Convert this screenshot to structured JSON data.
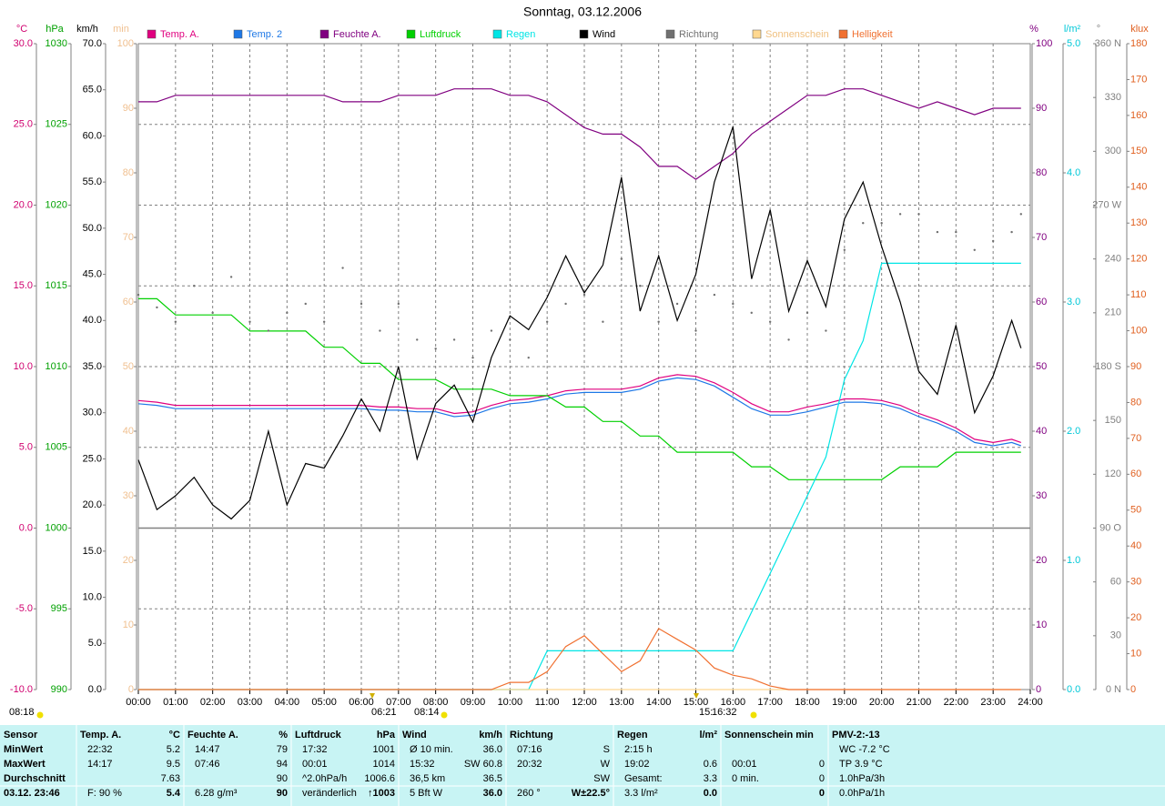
{
  "chart_data": {
    "type": "line",
    "title": "Sonntag, 03.12.2006",
    "grid": true,
    "axes": [
      {
        "label": "°C",
        "color": "#d0006f",
        "lim": [
          -10,
          30
        ],
        "ticks": [
          {
            "value": -10,
            "label": "-10.0"
          },
          {
            "value": -5,
            "label": "-5.0"
          },
          {
            "value": 0,
            "label": "0.0"
          },
          {
            "value": 5,
            "label": "5.0"
          },
          {
            "value": 10,
            "label": "10.0"
          },
          {
            "value": 15,
            "label": "15.0"
          },
          {
            "value": 20,
            "label": "20.0"
          },
          {
            "value": 25,
            "label": "25.0"
          },
          {
            "value": 30,
            "label": "30.0"
          }
        ]
      },
      {
        "label": "hPa",
        "color": "#00a000",
        "lim": [
          990,
          1030
        ],
        "ticks": [
          990,
          995,
          1000,
          1005,
          1010,
          1015,
          1020,
          1025,
          1030
        ]
      },
      {
        "label": "km/h",
        "color": "#000000",
        "lim": [
          0,
          70
        ],
        "ticks": [
          {
            "value": 0,
            "label": "0.0"
          },
          {
            "value": 5,
            "label": "5.0"
          },
          {
            "value": 10,
            "label": "10.0"
          },
          {
            "value": 15,
            "label": "15.0"
          },
          {
            "value": 20,
            "label": "20.0"
          },
          {
            "value": 25,
            "label": "25.0"
          },
          {
            "value": 30,
            "label": "30.0"
          },
          {
            "value": 35,
            "label": "35.0"
          },
          {
            "value": 40,
            "label": "40.0"
          },
          {
            "value": 45,
            "label": "45.0"
          },
          {
            "value": 50,
            "label": "50.0"
          },
          {
            "value": 55,
            "label": "55.0"
          },
          {
            "value": 60,
            "label": "60.0"
          },
          {
            "value": 65,
            "label": "65.0"
          },
          {
            "value": 70,
            "label": "70.0"
          }
        ]
      },
      {
        "label": "min",
        "color": "#f0c090",
        "lim": [
          0,
          100
        ],
        "ticks": [
          0,
          10,
          20,
          30,
          40,
          50,
          60,
          70,
          80,
          90,
          100
        ]
      },
      {
        "label": "%",
        "color": "#800080",
        "lim": [
          0,
          100
        ],
        "ticks": [
          0,
          10,
          20,
          30,
          40,
          50,
          60,
          70,
          80,
          90,
          100
        ]
      },
      {
        "label": "l/m²",
        "color": "#00c8d8",
        "lim": [
          0,
          5
        ],
        "ticks": [
          {
            "value": 0,
            "label": "0.0"
          },
          {
            "value": 1,
            "label": "1.0"
          },
          {
            "value": 2,
            "label": "2.0"
          },
          {
            "value": 3,
            "label": "3.0"
          },
          {
            "value": 4,
            "label": "4.0"
          },
          {
            "value": 5,
            "label": "5.0"
          }
        ]
      },
      {
        "label": "°",
        "color": "#808080",
        "lim": [
          0,
          360
        ],
        "ticks": [
          {
            "value": 0,
            "label": "0 N"
          },
          30,
          60,
          {
            "value": 90,
            "label": "90 O"
          },
          120,
          150,
          {
            "value": 180,
            "label": "180 S"
          },
          210,
          240,
          {
            "value": 270,
            "label": "270 W"
          },
          300,
          330,
          {
            "value": 360,
            "label": "360 N"
          }
        ]
      },
      {
        "label": "klux",
        "color": "#e06020",
        "lim": [
          0,
          180
        ],
        "ticks": [
          0,
          10,
          20,
          30,
          40,
          50,
          60,
          70,
          80,
          90,
          100,
          110,
          120,
          130,
          140,
          150,
          160,
          170,
          180
        ]
      }
    ],
    "x": [
      0,
      0.5,
      1,
      1.5,
      2,
      2.5,
      3,
      3.5,
      4,
      4.5,
      5,
      5.5,
      6,
      6.5,
      7,
      7.5,
      8,
      8.5,
      9,
      9.5,
      10,
      10.5,
      11,
      11.5,
      12,
      12.5,
      13,
      13.5,
      14,
      14.5,
      15,
      15.5,
      16,
      16.5,
      17,
      17.5,
      18,
      18.5,
      19,
      19.5,
      20,
      20.5,
      21,
      21.5,
      22,
      22.5,
      23,
      23.5,
      23.75
    ],
    "xlim": [
      0,
      24
    ],
    "xticks": [
      {
        "value": 0,
        "label": "00:00"
      },
      {
        "value": 1,
        "label": "01:00"
      },
      {
        "value": 2,
        "label": "02:00"
      },
      {
        "value": 3,
        "label": "03:00"
      },
      {
        "value": 4,
        "label": "04:00"
      },
      {
        "value": 5,
        "label": "05:00"
      },
      {
        "value": 6,
        "label": "06:00"
      },
      {
        "value": 7,
        "label": "07:00"
      },
      {
        "value": 8,
        "label": "08:00"
      },
      {
        "value": 9,
        "label": "09:00"
      },
      {
        "value": 10,
        "label": "10:00"
      },
      {
        "value": 11,
        "label": "11:00"
      },
      {
        "value": 12,
        "label": "12:00"
      },
      {
        "value": 13,
        "label": "13:00"
      },
      {
        "value": 14,
        "label": "14:00"
      },
      {
        "value": 15,
        "label": "15:00"
      },
      {
        "value": 16,
        "label": "16:00"
      },
      {
        "value": 17,
        "label": "17:00"
      },
      {
        "value": 18,
        "label": "18:00"
      },
      {
        "value": 19,
        "label": "19:00"
      },
      {
        "value": 20,
        "label": "20:00"
      },
      {
        "value": 21,
        "label": "21:00"
      },
      {
        "value": 22,
        "label": "22:00"
      },
      {
        "value": 23,
        "label": "23:00"
      },
      {
        "value": 24,
        "label": "24:00"
      }
    ],
    "series": [
      {
        "name": "Temp. A.",
        "color": "#e0007f",
        "axis": 0,
        "values": [
          7.9,
          7.8,
          7.6,
          7.6,
          7.6,
          7.6,
          7.6,
          7.6,
          7.6,
          7.6,
          7.6,
          7.6,
          7.6,
          7.5,
          7.5,
          7.4,
          7.4,
          7.1,
          7.2,
          7.6,
          7.9,
          8.0,
          8.2,
          8.5,
          8.6,
          8.6,
          8.6,
          8.8,
          9.3,
          9.5,
          9.4,
          9.0,
          8.4,
          7.7,
          7.2,
          7.2,
          7.5,
          7.7,
          8.0,
          8.0,
          7.9,
          7.6,
          7.1,
          6.7,
          6.2,
          5.5,
          5.3,
          5.5,
          5.3
        ]
      },
      {
        "name": "Temp. 2",
        "color": "#1e78e6",
        "axis": 0,
        "values": [
          7.7,
          7.6,
          7.4,
          7.4,
          7.4,
          7.4,
          7.4,
          7.4,
          7.4,
          7.4,
          7.4,
          7.4,
          7.4,
          7.3,
          7.3,
          7.2,
          7.2,
          6.9,
          7.0,
          7.4,
          7.7,
          7.8,
          8.0,
          8.3,
          8.4,
          8.4,
          8.4,
          8.6,
          9.1,
          9.3,
          9.2,
          8.8,
          8.1,
          7.4,
          7.0,
          7.0,
          7.2,
          7.5,
          7.8,
          7.8,
          7.7,
          7.4,
          6.9,
          6.5,
          6.0,
          5.3,
          5.1,
          5.3,
          5.1
        ]
      },
      {
        "name": "Feuchte A.",
        "color": "#800080",
        "axis": 4,
        "values": [
          91,
          91,
          92,
          92,
          92,
          92,
          92,
          92,
          92,
          92,
          92,
          91,
          91,
          91,
          92,
          92,
          92,
          93,
          93,
          93,
          92,
          92,
          91,
          89,
          87,
          86,
          86,
          84,
          81,
          81,
          79,
          81,
          83,
          86,
          88,
          90,
          92,
          92,
          93,
          93,
          92,
          91,
          90,
          91,
          90,
          89,
          90,
          90,
          90
        ]
      },
      {
        "name": "Luftdruck",
        "color": "#00d000",
        "axis": 1,
        "values": [
          1014.2,
          1014.2,
          1013.2,
          1013.2,
          1013.2,
          1013.2,
          1012.2,
          1012.2,
          1012.2,
          1012.2,
          1011.2,
          1011.2,
          1010.2,
          1010.2,
          1009.2,
          1009.2,
          1009.2,
          1008.6,
          1008.6,
          1008.6,
          1008.2,
          1008.2,
          1008.2,
          1007.5,
          1007.5,
          1006.6,
          1006.6,
          1005.7,
          1005.7,
          1004.7,
          1004.7,
          1004.7,
          1004.7,
          1003.8,
          1003.8,
          1003.0,
          1003.0,
          1003.0,
          1003.0,
          1003.0,
          1003.0,
          1003.8,
          1003.8,
          1003.8,
          1004.7,
          1004.7,
          1004.7,
          1004.7,
          1004.7
        ]
      },
      {
        "name": "Regen",
        "color": "#00e5e5",
        "axis": 5,
        "values": [
          0,
          0,
          0,
          0,
          0,
          0,
          0,
          0,
          0,
          0,
          0,
          0,
          0,
          0,
          0,
          0,
          0,
          0,
          0,
          0,
          0,
          0,
          0.3,
          0.3,
          0.3,
          0.3,
          0.3,
          0.3,
          0.3,
          0.3,
          0.3,
          0.3,
          0.3,
          0.6,
          0.9,
          1.2,
          1.5,
          1.8,
          2.4,
          2.7,
          3.3,
          3.3,
          3.3,
          3.3,
          3.3,
          3.3,
          3.3,
          3.3,
          3.3
        ]
      },
      {
        "name": "Wind",
        "color": "#000000",
        "axis": 2,
        "values": [
          24.9,
          19.5,
          21,
          23,
          20,
          18.5,
          20.5,
          28,
          20,
          24.5,
          24,
          27.5,
          31.5,
          28,
          35,
          25,
          31,
          33,
          29,
          36,
          40.5,
          39,
          42.5,
          47,
          43,
          46,
          55.5,
          41,
          47,
          40,
          45,
          55,
          61,
          44.5,
          52,
          41,
          46.5,
          41.5,
          51,
          55,
          48,
          42,
          34.5,
          32,
          39.5,
          30,
          34,
          40,
          37
        ]
      },
      {
        "name": "Richtung",
        "color": "#707070",
        "axis": 6,
        "style": "dots",
        "values": [
          220,
          213,
          205,
          225,
          210,
          230,
          205,
          200,
          210,
          215,
          205,
          235,
          215,
          200,
          215,
          195,
          190,
          195,
          185,
          200,
          195,
          185,
          205,
          215,
          220,
          205,
          240,
          225,
          205,
          215,
          200,
          220,
          215,
          210,
          205,
          195,
          210,
          200,
          245,
          260,
          260,
          265,
          265,
          255,
          255,
          245,
          250,
          255,
          265
        ]
      },
      {
        "name": "Sonnenschein",
        "color": "#ffd890",
        "axis": 3,
        "values": [
          0,
          0,
          0,
          0,
          0,
          0,
          0,
          0,
          0,
          0,
          0,
          0,
          0,
          0,
          0,
          0,
          0,
          0,
          0,
          0,
          0,
          0,
          0,
          0,
          0,
          0,
          0,
          0,
          0,
          0,
          0,
          0,
          0,
          0,
          0,
          0,
          0,
          0,
          0,
          0,
          0,
          0,
          0,
          0,
          0,
          0,
          0,
          0,
          0
        ]
      },
      {
        "name": "Helligkeit",
        "color": "#f07030",
        "axis": 7,
        "values": [
          0,
          0,
          0,
          0,
          0,
          0,
          0,
          0,
          0,
          0,
          0,
          0,
          0,
          0,
          0,
          0,
          0,
          0,
          0,
          0,
          2,
          2,
          5,
          12,
          15,
          10,
          5,
          8,
          17,
          14,
          11,
          6,
          4,
          3,
          1,
          0,
          0,
          0,
          0,
          0,
          0,
          0,
          0,
          0,
          0,
          0,
          0,
          0,
          0
        ]
      }
    ],
    "annotations": [
      "08:18",
      "06:21",
      "08:14",
      "15:",
      "16:32"
    ]
  },
  "stats": {
    "columns": [
      {
        "header": {
          "l": "Sensor"
        },
        "rows": [
          {
            "l": "MinWert"
          },
          {
            "l": "MaxWert"
          },
          {
            "l": "Durchschnitt"
          },
          {
            "l": "03.12. 23:46"
          }
        ]
      },
      {
        "header": {
          "l": "Temp. A.",
          "r": "°C"
        },
        "rows": [
          {
            "l": "22:32",
            "r": "5.2"
          },
          {
            "l": "14:17",
            "r": "9.5"
          },
          {
            "r": "7.63"
          },
          {
            "l": "F: 90 %",
            "r": "5.4"
          }
        ]
      },
      {
        "header": {
          "l": "Feuchte A.",
          "r": "%"
        },
        "rows": [
          {
            "l": "14:47",
            "r": "79"
          },
          {
            "l": "07:46",
            "r": "94"
          },
          {
            "r": "90"
          },
          {
            "l": "6.28 g/m³",
            "r": "90"
          }
        ]
      },
      {
        "header": {
          "l": "Luftdruck",
          "r": "hPa"
        },
        "rows": [
          {
            "l": "17:32",
            "r": "1001"
          },
          {
            "l": "00:01",
            "r": "1014"
          },
          {
            "l": "^2.0hPa/h",
            "r": "1006.6"
          },
          {
            "l": "veränderlich",
            "r": "↑1003"
          }
        ]
      },
      {
        "header": {
          "l": "Wind",
          "r": "km/h"
        },
        "rows": [
          {
            "l": "Ø 10 min.",
            "r": "36.0"
          },
          {
            "l": "15:32",
            "r": "SW 60.8"
          },
          {
            "l": "36,5 km",
            "r": "36.5"
          },
          {
            "l": "5 Bft W",
            "r": "36.0"
          }
        ]
      },
      {
        "header": {
          "l": "Richtung"
        },
        "rows": [
          {
            "l": "07:16",
            "r": "S"
          },
          {
            "l": "20:32",
            "r": "W"
          },
          {
            "r": "SW"
          },
          {
            "l": "260 °",
            "r": "W±22.5°"
          }
        ]
      },
      {
        "header": {
          "l": "Regen",
          "r": "l/m²"
        },
        "rows": [
          {
            "l": "2:15 h"
          },
          {
            "l": "19:02",
            "r": "0.6"
          },
          {
            "l": "Gesamt:",
            "r": "3.3"
          },
          {
            "l": "3.3 l/m²",
            "r": "0.0"
          }
        ]
      },
      {
        "header": {
          "l": "Sonnenschein min"
        },
        "rows": [
          {},
          {
            "l": "00:01",
            "r": "0"
          },
          {
            "l": "0 min.",
            "r": "0"
          },
          {
            "r": "0"
          }
        ]
      },
      {
        "header": {
          "l": "PMV-2:-13"
        },
        "rows": [
          {
            "l": "WC -7.2 °C"
          },
          {
            "l": "TP 3.9 °C"
          },
          {
            "l": "1.0hPa/3h"
          },
          {
            "l": "0.0hPa/1h"
          }
        ]
      }
    ]
  }
}
